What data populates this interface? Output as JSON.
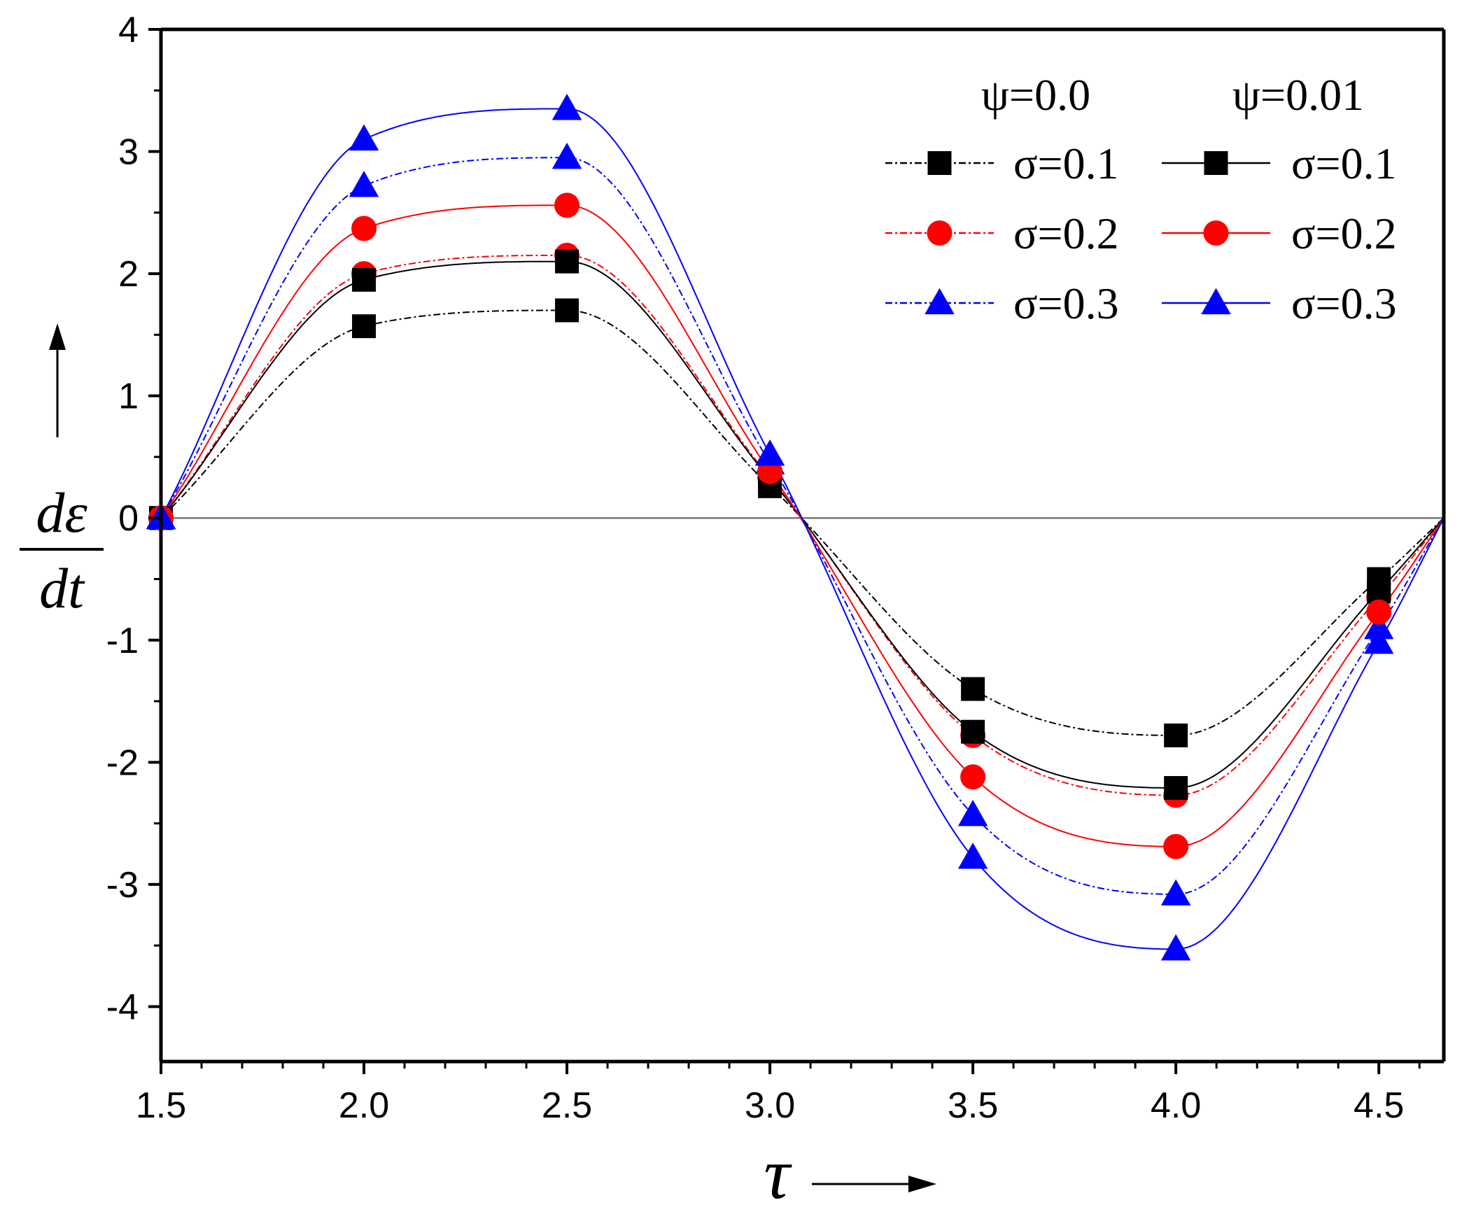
{
  "chart_data": {
    "type": "line",
    "title": "",
    "xlabel": "τ",
    "ylabel_numerator": "dε",
    "ylabel_denominator": "dt",
    "xlim": [
      1.5,
      4.66
    ],
    "ylim": [
      -4.45,
      4
    ],
    "x_ticks": [
      1.5,
      2.0,
      2.5,
      3.0,
      3.5,
      4.0,
      4.5
    ],
    "x_tick_labels": [
      "1.5",
      "2.0",
      "2.5",
      "3.0",
      "3.5",
      "4.0",
      "4.5"
    ],
    "y_ticks": [
      4,
      3,
      2,
      1,
      0,
      -1,
      -2,
      -3,
      -4
    ],
    "y_tick_labels": [
      "4",
      "3",
      "2",
      "1",
      "0",
      "-1",
      "-2",
      "-3",
      "-4"
    ],
    "grid": false,
    "legend_position": "top-right",
    "legend_group_titles": [
      "ψ=0.0",
      "ψ=0.01"
    ],
    "marker_x": [
      1.5,
      2.0,
      2.5,
      3.0,
      3.5,
      4.0,
      4.5,
      4.66
    ],
    "series": [
      {
        "name": "σ=0.1",
        "group": "ψ=0.0",
        "style": "dashdot",
        "marker": "square",
        "color": "#000000",
        "values": [
          0.0,
          1.57,
          1.7,
          0.26,
          -1.4,
          -1.78,
          -0.5,
          0.0
        ]
      },
      {
        "name": "σ=0.2",
        "group": "ψ=0.0",
        "style": "dashdot",
        "marker": "circle",
        "color": "#ff0000",
        "values": [
          0.0,
          2.0,
          2.15,
          0.33,
          -1.78,
          -2.27,
          -0.65,
          0.0
        ]
      },
      {
        "name": "σ=0.3",
        "group": "ψ=0.0",
        "style": "dashdot",
        "marker": "triangle",
        "color": "#0000ff",
        "values": [
          0.0,
          2.72,
          2.95,
          0.45,
          -2.43,
          -3.08,
          -0.9,
          0.0
        ]
      },
      {
        "name": "σ=0.1",
        "group": "ψ=0.01",
        "style": "solid",
        "marker": "square",
        "color": "#000000",
        "values": [
          0.0,
          1.95,
          2.1,
          0.32,
          -1.75,
          -2.21,
          -0.6,
          0.0
        ]
      },
      {
        "name": "σ=0.2",
        "group": "ψ=0.01",
        "style": "solid",
        "marker": "circle",
        "color": "#ff0000",
        "values": [
          0.0,
          2.37,
          2.56,
          0.38,
          -2.12,
          -2.69,
          -0.77,
          0.0
        ]
      },
      {
        "name": "σ=0.3",
        "group": "ψ=0.01",
        "style": "solid",
        "marker": "triangle",
        "color": "#0000ff",
        "values": [
          0.0,
          3.1,
          3.35,
          0.52,
          -2.78,
          -3.53,
          -1.02,
          0.0
        ]
      }
    ]
  }
}
